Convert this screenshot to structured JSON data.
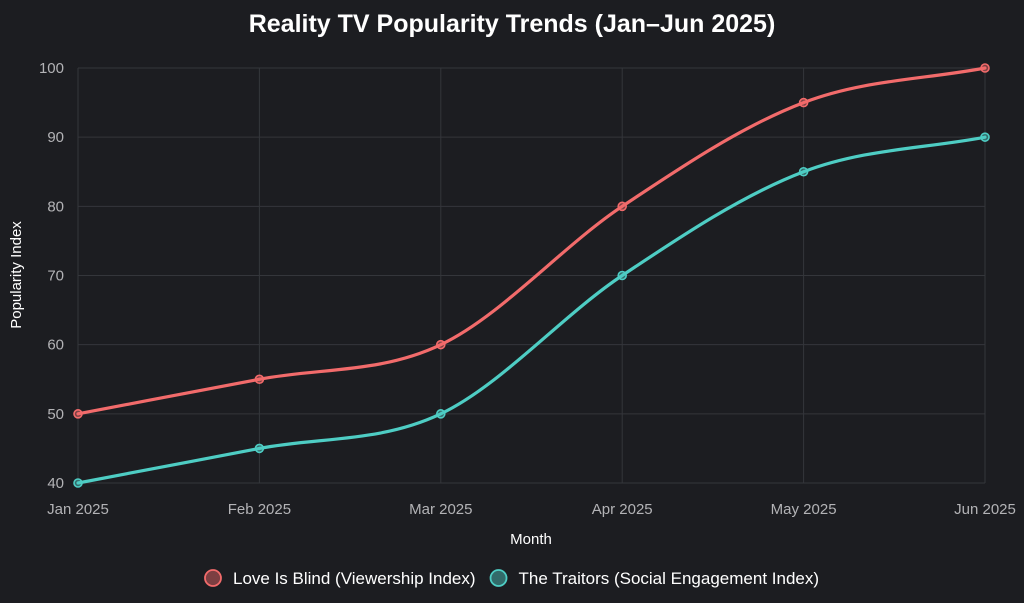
{
  "chart_data": {
    "type": "line",
    "title": "Reality TV Popularity Trends (Jan–Jun 2025)",
    "xlabel": "Month",
    "ylabel": "Popularity Index",
    "categories": [
      "Jan 2025",
      "Feb 2025",
      "Mar 2025",
      "Apr 2025",
      "May 2025",
      "Jun 2025"
    ],
    "ylim": [
      40,
      100
    ],
    "yticks": [
      40,
      50,
      60,
      70,
      80,
      90,
      100
    ],
    "grid": true,
    "legend_position": "bottom",
    "series": [
      {
        "name": "Love Is Blind (Viewership Index)",
        "values": [
          50,
          55,
          60,
          80,
          95,
          100
        ],
        "color": "#f26b6b"
      },
      {
        "name": "The Traitors (Social Engagement Index)",
        "values": [
          40,
          45,
          50,
          70,
          85,
          90
        ],
        "color": "#4ecdc4"
      }
    ]
  }
}
